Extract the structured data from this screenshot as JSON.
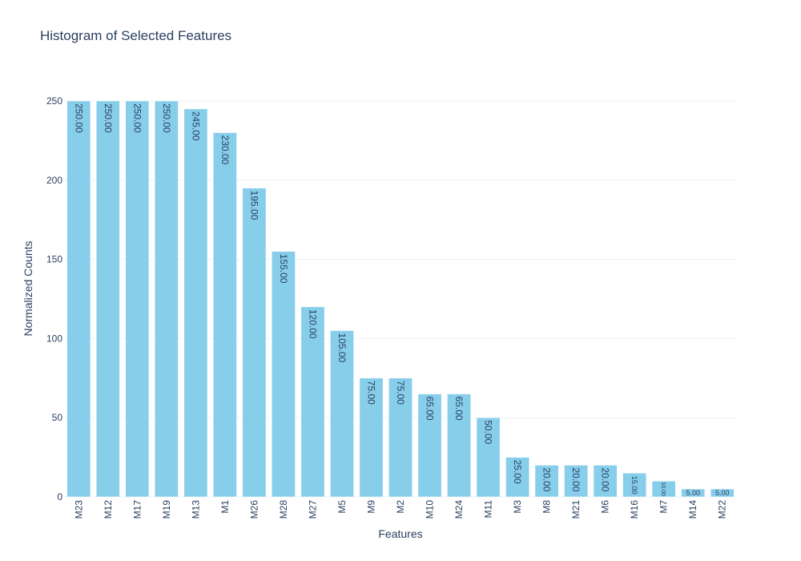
{
  "chart_data": {
    "type": "bar",
    "title": "Histogram of Selected Features",
    "xlabel": "Features",
    "ylabel": "Normalized Counts",
    "ylim": [
      0,
      250
    ],
    "yticks": [
      0,
      50,
      100,
      150,
      200,
      250
    ],
    "grid": true,
    "legend": "none",
    "bar_color": "#87ceeb",
    "text_color": "#2a3f5f",
    "categories": [
      "M23",
      "M12",
      "M17",
      "M19",
      "M13",
      "M1",
      "M26",
      "M28",
      "M27",
      "M5",
      "M9",
      "M2",
      "M10",
      "M24",
      "M11",
      "M3",
      "M8",
      "M21",
      "M6",
      "M16",
      "M7",
      "M14",
      "M22"
    ],
    "values": [
      250,
      250,
      250,
      250,
      245,
      230,
      195,
      155,
      120,
      105,
      75,
      75,
      65,
      65,
      50,
      25,
      20,
      20,
      20,
      15,
      10,
      5,
      5
    ],
    "data_labels": [
      "250.00",
      "250.00",
      "250.00",
      "250.00",
      "245.00",
      "230.00",
      "195.00",
      "155.00",
      "120.00",
      "105.00",
      "75.00",
      "75.00",
      "65.00",
      "65.00",
      "50.00",
      "25.00",
      "20.00",
      "20.00",
      "20.00",
      "15.00",
      "10.00",
      "5.00",
      "5.00"
    ]
  }
}
